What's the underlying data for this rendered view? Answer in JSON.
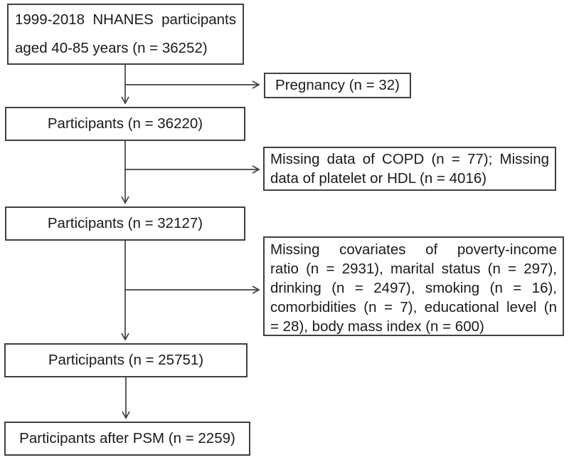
{
  "figure": {
    "type": "participant-flowchart",
    "background_color": "#ffffff",
    "border_color": "#404040",
    "text_color": "#1a1a1a",
    "flow_boxes": [
      {
        "id": "nhanes",
        "lines": [
          "1999-2018 NHANES participants",
          "aged 40-85 years (n = 36252)"
        ]
      },
      {
        "id": "participants-36220",
        "label": "Participants (n = 36220)"
      },
      {
        "id": "participants-32127",
        "label": "Participants (n = 32127)"
      },
      {
        "id": "participants-25751",
        "label": "Participants (n = 25751)"
      },
      {
        "id": "participants-psm",
        "label": "Participants after PSM (n = 2259)"
      }
    ],
    "exclusion_boxes": [
      {
        "id": "pregnancy",
        "label": "Pregnancy (n = 32)"
      },
      {
        "id": "missing-data",
        "lines": [
          "Missing data of COPD (n = 77); Missing",
          "data of platelet or HDL (n = 4016)"
        ]
      },
      {
        "id": "missing-covariates",
        "lines": [
          "Missing covariates of poverty-income",
          "ratio (n = 2931), marital status (n = 297),",
          "drinking (n = 2497), smoking (n = 16),",
          "comorbidities (n = 7), educational level (n",
          "= 28), body mass index (n = 600)"
        ]
      }
    ]
  }
}
